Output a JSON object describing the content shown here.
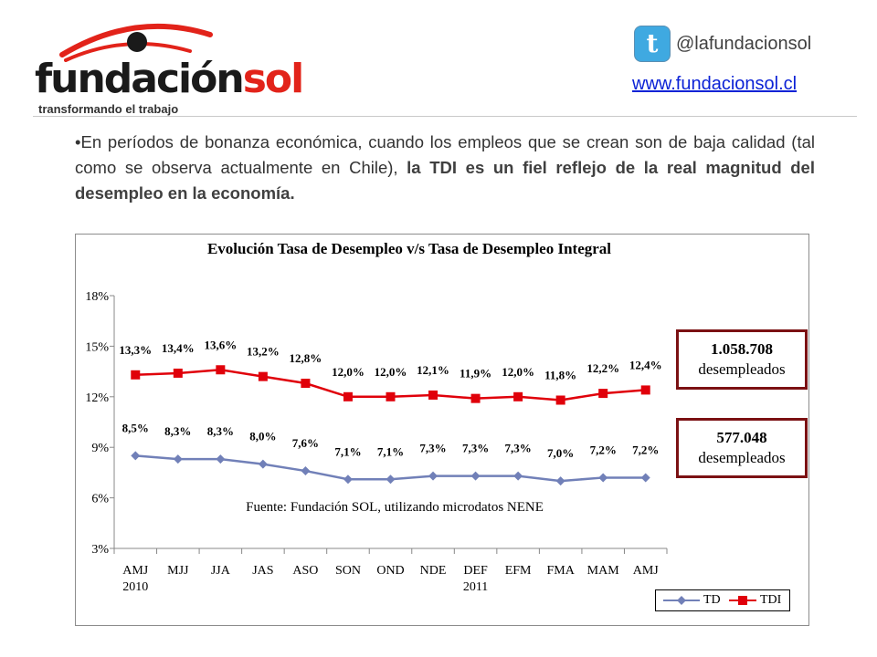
{
  "header": {
    "logo_word_1": "fundación",
    "logo_word_2": "sol",
    "logo_tagline": "transformando el trabajo",
    "twitter_icon_letter": "t",
    "twitter_handle": "@lafundacionsol",
    "website": "www.fundacionsol.cl"
  },
  "body": {
    "text_plain": "•En períodos de bonanza económica, cuando los empleos que se crean son de baja calidad (tal como se observa actualmente en Chile), ",
    "text_bold": "la TDI es un fiel reflejo de la real magnitud del desempleo en la economía."
  },
  "callouts": [
    {
      "number": "1.058.708",
      "label": "desempleados"
    },
    {
      "number": "577.048",
      "label": "desempleados"
    }
  ],
  "colors": {
    "td": "#7180b8",
    "tdi": "#e0000a",
    "callout_border": "#7b1113",
    "link": "#0b22d6",
    "brand_red": "#e2231a"
  },
  "chart_data": {
    "type": "line",
    "title": "Evolución Tasa de Desempleo v/s Tasa de Desempleo Integral",
    "annotation": "Fuente: Fundación SOL, utilizando microdatos NENE",
    "categories": [
      "AMJ",
      "MJJ",
      "JJA",
      "JAS",
      "ASO",
      "SON",
      "OND",
      "NDE",
      "DEF",
      "EFM",
      "FMA",
      "MAM",
      "AMJ"
    ],
    "category_sublabels": [
      "2010",
      "",
      "",
      "",
      "",
      "",
      "",
      "",
      "2011",
      "",
      "",
      "",
      ""
    ],
    "ylim": [
      3,
      18
    ],
    "yticks": [
      3,
      6,
      9,
      12,
      15,
      18
    ],
    "ytick_labels": [
      "3%",
      "6%",
      "9%",
      "12%",
      "15%",
      "18%"
    ],
    "legend_position": "bottom-right",
    "grid": false,
    "series": [
      {
        "name": "TD",
        "marker": "diamond",
        "values": [
          8.5,
          8.3,
          8.3,
          8.0,
          7.6,
          7.1,
          7.1,
          7.3,
          7.3,
          7.3,
          7.0,
          7.2,
          7.2
        ],
        "labels": [
          "8,5%",
          "8,3%",
          "8,3%",
          "8,0%",
          "7,6%",
          "7,1%",
          "7,1%",
          "7,3%",
          "7,3%",
          "7,3%",
          "7,0%",
          "7,2%",
          "7,2%"
        ]
      },
      {
        "name": "TDI",
        "marker": "square",
        "values": [
          13.3,
          13.4,
          13.6,
          13.2,
          12.8,
          12.0,
          12.0,
          12.1,
          11.9,
          12.0,
          11.8,
          12.2,
          12.4
        ],
        "labels": [
          "13,3%",
          "13,4%",
          "13,6%",
          "13,2%",
          "12,8%",
          "12,0%",
          "12,0%",
          "12,1%",
          "11,9%",
          "12,0%",
          "11,8%",
          "12,2%",
          "12,4%"
        ]
      }
    ]
  }
}
